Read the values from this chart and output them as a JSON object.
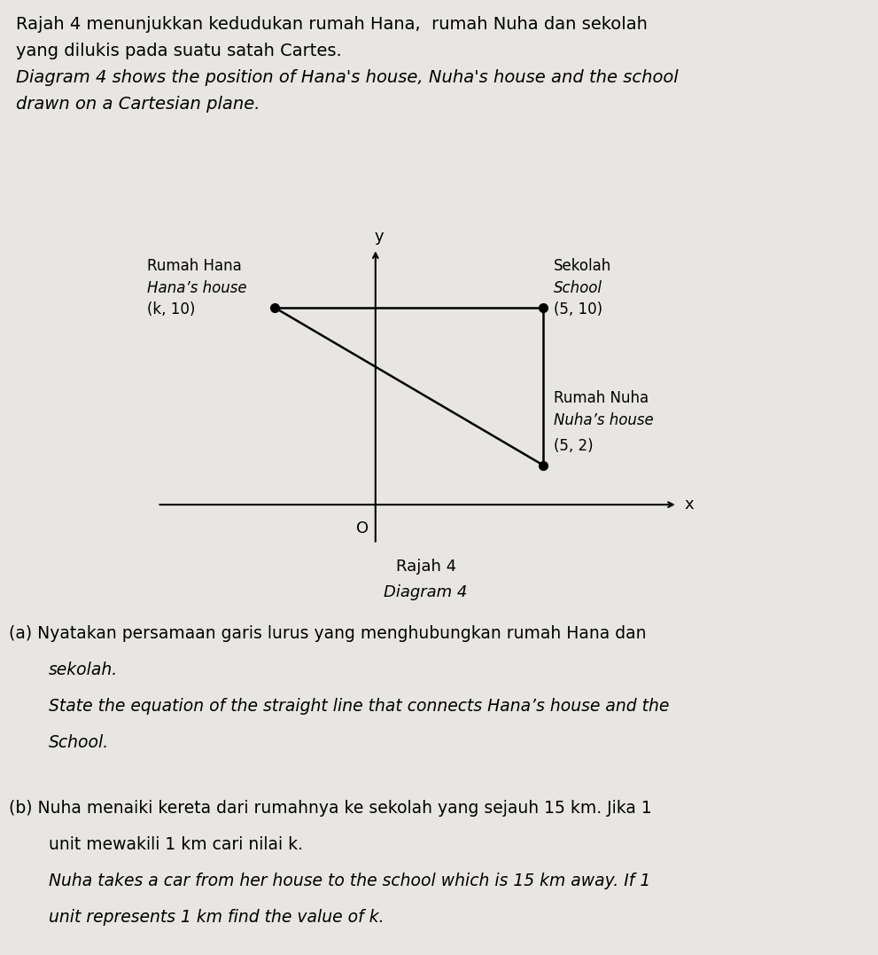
{
  "page_bg": "#e8e6e3",
  "header_text_line1": "Rajah 4 menunjukkan kedudukan rumah Hana,  rumah Nuha dan sekolah",
  "header_text_line2": "yang dilukis pada suatu satah Cartes.",
  "header_text_line3_italic": "Diagram 4 shows the position of Hana's house, Nuha's house and the school",
  "header_text_line4_italic": "drawn on a Cartesian plane.",
  "point_hana": [
    -3,
    10
  ],
  "point_school": [
    5,
    10
  ],
  "point_nuha": [
    5,
    2
  ],
  "label_hana_line1": "Rumah Hana",
  "label_hana_line2": "Hana’s house",
  "label_hana_line3": "(k, 10)",
  "label_school_line1": "Sekolah",
  "label_school_line2": "School",
  "label_school_line3": "(5, 10)",
  "label_nuha_line1": "Rumah Nuha",
  "label_nuha_line2": "Nuha’s house",
  "label_nuha_line3": "(5, 2)",
  "origin_label": "O",
  "x_axis_label": "x",
  "y_axis_label": "y",
  "diagram_label_line1": "Rajah 4",
  "diagram_label_line2": "Diagram 4",
  "question_a_line1": "(a) Nyatakan persamaan garis lurus yang menghubungkan rumah Hana dan",
  "question_a_line2": "sekolah.",
  "question_a_line3_italic": "State the equation of the straight line that connects Hana’s house and the",
  "question_a_line4_italic": "School.",
  "question_b_line1": "(b) Nuha menaiki kereta dari rumahnya ke sekolah yang sejauh 15 km. Jika 1",
  "question_b_line2": "unit mewakili 1 km cari nilai k.",
  "question_b_line3_italic": "Nuha takes a car from her house to the school which is 15 km away. If 1",
  "question_b_line4_italic": "unit represents 1 km find the value of k.",
  "text_color": "#000000",
  "axis_color": "#000000",
  "line_color": "#000000",
  "dot_color": "#000000",
  "font_size_header": 14,
  "font_size_diagram_labels": 12,
  "font_size_questions": 13.5,
  "font_size_axis": 13,
  "font_size_caption": 13
}
